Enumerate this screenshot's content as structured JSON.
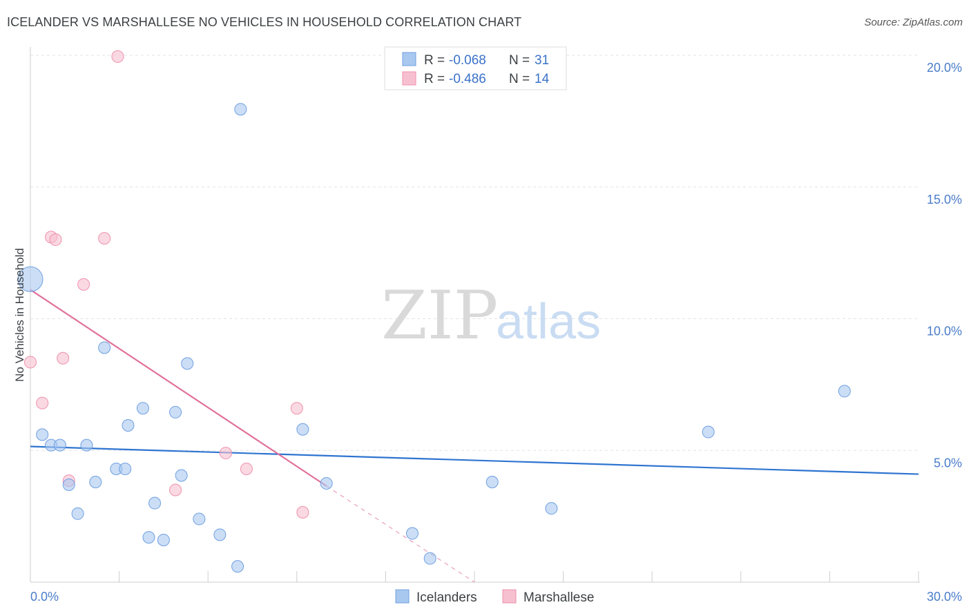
{
  "chart_data": {
    "type": "scatter",
    "title": "ICELANDER VS MARSHALLESE NO VEHICLES IN HOUSEHOLD CORRELATION CHART",
    "source": "Source: ZipAtlas.com",
    "xlabel": "",
    "ylabel": "No Vehicles in Household",
    "xlim": [
      0,
      30
    ],
    "ylim": [
      0,
      20
    ],
    "x_tick_labels": [
      "0.0%",
      "30.0%"
    ],
    "y_ticks": [
      5,
      10,
      15,
      20
    ],
    "y_tick_labels": [
      "5.0%",
      "10.0%",
      "15.0%",
      "20.0%"
    ],
    "grid": true,
    "watermark": {
      "zip": "ZIP",
      "atlas": "atlas"
    },
    "legend_stats": {
      "r_label": "R =",
      "n_label": "N =",
      "entries": [
        {
          "series": "Icelanders",
          "r": "-0.068",
          "n": "31"
        },
        {
          "series": "Marshallese",
          "r": "-0.486",
          "n": "14"
        }
      ]
    },
    "series": [
      {
        "name": "Icelanders",
        "color": "#a8c8f0",
        "stroke": "#6f9fe0",
        "trend_color": "#2e74d0",
        "trend": {
          "x0": 0,
          "y0": 5.15,
          "x1": 30,
          "y1": 4.1
        },
        "points": [
          {
            "x": 0.0,
            "y": 11.5,
            "big": true
          },
          {
            "x": 0.4,
            "y": 5.6
          },
          {
            "x": 0.7,
            "y": 5.2
          },
          {
            "x": 1.0,
            "y": 5.2
          },
          {
            "x": 1.3,
            "y": 3.7
          },
          {
            "x": 1.6,
            "y": 2.6
          },
          {
            "x": 1.9,
            "y": 5.2
          },
          {
            "x": 2.2,
            "y": 3.8
          },
          {
            "x": 2.5,
            "y": 8.9
          },
          {
            "x": 2.9,
            "y": 4.3
          },
          {
            "x": 3.2,
            "y": 4.3
          },
          {
            "x": 3.3,
            "y": 5.95
          },
          {
            "x": 3.8,
            "y": 6.6
          },
          {
            "x": 4.0,
            "y": 1.7
          },
          {
            "x": 4.2,
            "y": 3.0
          },
          {
            "x": 4.5,
            "y": 1.6
          },
          {
            "x": 4.9,
            "y": 6.45
          },
          {
            "x": 5.1,
            "y": 4.05
          },
          {
            "x": 5.3,
            "y": 8.3
          },
          {
            "x": 5.7,
            "y": 2.4
          },
          {
            "x": 6.4,
            "y": 1.8
          },
          {
            "x": 7.0,
            "y": 0.6
          },
          {
            "x": 7.1,
            "y": 17.95
          },
          {
            "x": 9.2,
            "y": 5.8
          },
          {
            "x": 10.0,
            "y": 3.75
          },
          {
            "x": 12.9,
            "y": 1.85
          },
          {
            "x": 13.5,
            "y": 0.9
          },
          {
            "x": 15.6,
            "y": 3.8
          },
          {
            "x": 17.6,
            "y": 2.8
          },
          {
            "x": 22.9,
            "y": 5.7
          },
          {
            "x": 27.5,
            "y": 7.25
          }
        ]
      },
      {
        "name": "Marshallese",
        "color": "#f7c0d0",
        "stroke": "#ef90ac",
        "trend_color": "#e0709a",
        "trend": {
          "x0": 0,
          "y0": 11.1,
          "x1": 10.0,
          "y1": 3.65
        },
        "trend_dashed": {
          "x0": 10.0,
          "y0": 3.65,
          "x1": 15.0,
          "y1": 0.0
        },
        "points": [
          {
            "x": 0.0,
            "y": 8.35
          },
          {
            "x": 0.4,
            "y": 6.8
          },
          {
            "x": 0.7,
            "y": 13.1
          },
          {
            "x": 0.85,
            "y": 13.0
          },
          {
            "x": 1.1,
            "y": 8.5
          },
          {
            "x": 1.3,
            "y": 3.85
          },
          {
            "x": 1.8,
            "y": 11.3
          },
          {
            "x": 2.5,
            "y": 13.05
          },
          {
            "x": 2.95,
            "y": 19.95
          },
          {
            "x": 4.9,
            "y": 3.5
          },
          {
            "x": 6.6,
            "y": 4.9
          },
          {
            "x": 7.3,
            "y": 4.3
          },
          {
            "x": 9.0,
            "y": 6.6
          },
          {
            "x": 9.2,
            "y": 2.65
          }
        ]
      }
    ]
  }
}
